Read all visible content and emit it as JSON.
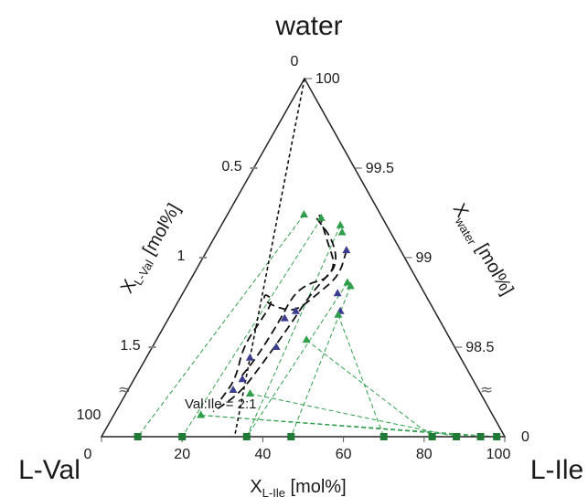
{
  "chart_data": {
    "type": "scatter",
    "vertices": {
      "top": "water",
      "left": "L-Val",
      "right": "L-Ile"
    },
    "axes": {
      "left": {
        "label_main": "X",
        "label_sub": "L-Val",
        "label_unit": " [mol%]",
        "ticks": [
          {
            "label": "0",
            "frac": 0.0
          },
          {
            "label": "0.5",
            "frac": 0.25
          },
          {
            "label": "1",
            "frac": 0.5
          },
          {
            "label": "1.5",
            "frac": 0.75
          }
        ],
        "end_label": "100"
      },
      "right": {
        "label_main": "X",
        "label_sub": "water",
        "label_unit": " [mol%]",
        "ticks": [
          {
            "label": "100",
            "frac": 0.0
          },
          {
            "label": "99.5",
            "frac": 0.25
          },
          {
            "label": "99",
            "frac": 0.5
          },
          {
            "label": "98.5",
            "frac": 0.75
          }
        ],
        "end_label": "0"
      },
      "bottom": {
        "label_main": "X",
        "label_sub": "L-Ile",
        "label_unit": " [mol%]",
        "ticks": [
          "0",
          "20",
          "40",
          "60",
          "80",
          "100"
        ]
      }
    },
    "annotation": "Val:Ile = 2:1",
    "axis_break_symbol": "≈",
    "series": [
      {
        "marker": "triangle",
        "color": "#3d3d8f",
        "points_frac": [
          {
            "u": 0.48,
            "v": 0.72
          },
          {
            "u": 0.6,
            "v": 0.64
          },
          {
            "u": 0.65,
            "v": 0.64
          },
          {
            "u": 0.65,
            "v": 0.47
          },
          {
            "u": 0.67,
            "v": 0.43
          },
          {
            "u": 0.75,
            "v": 0.41
          },
          {
            "u": 0.78,
            "v": 0.33
          },
          {
            "u": 0.84,
            "v": 0.32
          },
          {
            "u": 0.87,
            "v": 0.3
          }
        ]
      },
      {
        "marker": "triangle",
        "color": "#2e9e4a",
        "points_frac": [
          {
            "u": 0.38,
            "v": 0.5
          },
          {
            "u": 0.39,
            "v": 0.61
          },
          {
            "u": 0.41,
            "v": 0.72
          },
          {
            "u": 0.43,
            "v": 0.72
          },
          {
            "u": 0.57,
            "v": 0.69
          },
          {
            "u": 0.58,
            "v": 0.7
          },
          {
            "u": 0.66,
            "v": 0.63
          },
          {
            "u": 0.73,
            "v": 0.51
          },
          {
            "u": 0.88,
            "v": 0.35
          },
          {
            "u": 0.94,
            "v": 0.23
          }
        ]
      },
      {
        "marker": "square",
        "color": "#1f7a36",
        "x_values": [
          9,
          20,
          36,
          47,
          70,
          82,
          88,
          94,
          98
        ]
      }
    ],
    "dashed_curves": 3,
    "tie_lines": [
      {
        "from": {
          "u": 0.38,
          "v": 0.5
        },
        "to_x": 9
      },
      {
        "from": {
          "u": 0.39,
          "v": 0.61
        },
        "to_x": 20
      },
      {
        "from": {
          "u": 0.41,
          "v": 0.72
        },
        "to_x": 36
      },
      {
        "from": {
          "u": 0.57,
          "v": 0.69
        },
        "to_x": 36
      },
      {
        "from": {
          "u": 0.58,
          "v": 0.7
        },
        "to_x": 47
      },
      {
        "from": {
          "u": 0.66,
          "v": 0.63
        },
        "to_x": 70
      },
      {
        "from": {
          "u": 0.73,
          "v": 0.51
        },
        "to_x": 82
      },
      {
        "from": {
          "u": 0.88,
          "v": 0.35
        },
        "to_x": 88
      },
      {
        "from": {
          "u": 0.94,
          "v": 0.23
        },
        "to_x": 94
      },
      {
        "from": {
          "u": 0.94,
          "v": 0.23
        },
        "to_x": 98
      }
    ]
  }
}
